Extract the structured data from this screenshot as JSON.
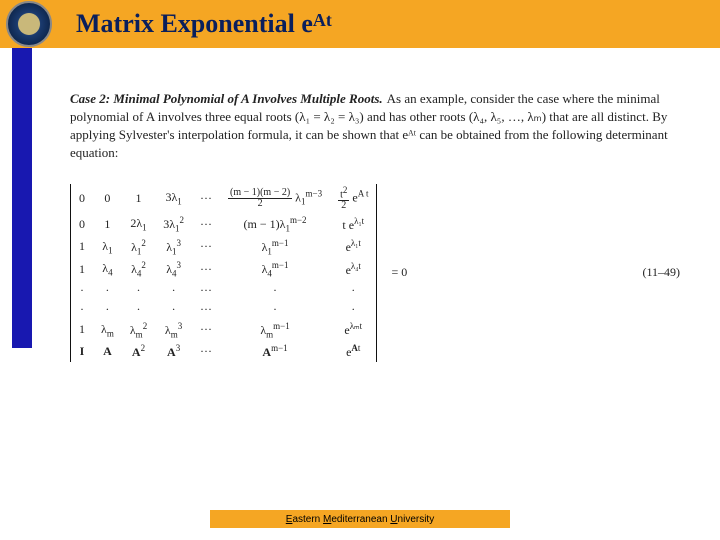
{
  "header": {
    "title_prefix": "Matrix Exponential e",
    "title_sup": "At",
    "bar_color": "#f5a623",
    "title_color": "#0a1f5c",
    "side_color": "#1818b0"
  },
  "case": {
    "heading": "Case 2: Minimal Polynomial of A Involves Multiple Roots.",
    "body": "As an example, consider the case where the minimal polynomial of A involves three equal roots (λ₁ = λ₂ = λ₃) and has other roots (λ₄, λ₅, …, λₘ) that are all distinct. By applying Sylvester's interpolation formula, it can be shown that eᴬᵗ can be obtained from the following determinant equation:"
  },
  "matrix": {
    "rows": [
      [
        "0",
        "0",
        "1",
        "3λ₁",
        "···",
        "(m − 1)(m − 2)/2 · λ₁ᵐ⁻³",
        "t² / 2 · eᴬᵗ"
      ],
      [
        "0",
        "1",
        "2λ₁",
        "3λ₁²",
        "···",
        "(m − 1)λ₁ᵐ⁻²",
        "t eᴸ¹ᵗ"
      ],
      [
        "1",
        "λ₁",
        "λ₁²",
        "λ₁³",
        "···",
        "λ₁ᵐ⁻¹",
        "eᴸ¹ᵗ"
      ],
      [
        "1",
        "λ₄",
        "λ₄²",
        "λ₄³",
        "···",
        "λ₄ᵐ⁻¹",
        "eᴸ⁴ᵗ"
      ],
      [
        "·",
        "·",
        "·",
        "·",
        "···",
        "·",
        "·"
      ],
      [
        "·",
        "·",
        "·",
        "·",
        "···",
        "·",
        "·"
      ],
      [
        "1",
        "λₘ",
        "λₘ²",
        "λₘ³",
        "···",
        "λₘᵐ⁻¹",
        "eᴸᵐᵗ"
      ],
      [
        "I",
        "A",
        "A²",
        "A³",
        "···",
        "Aᵐ⁻¹",
        "eᴬᵗ"
      ]
    ],
    "rhs": "= 0",
    "eqno": "(11–49)"
  },
  "footer": {
    "text_parts": [
      "E",
      "astern ",
      "M",
      "editerranean ",
      "U",
      "niversity"
    ]
  }
}
